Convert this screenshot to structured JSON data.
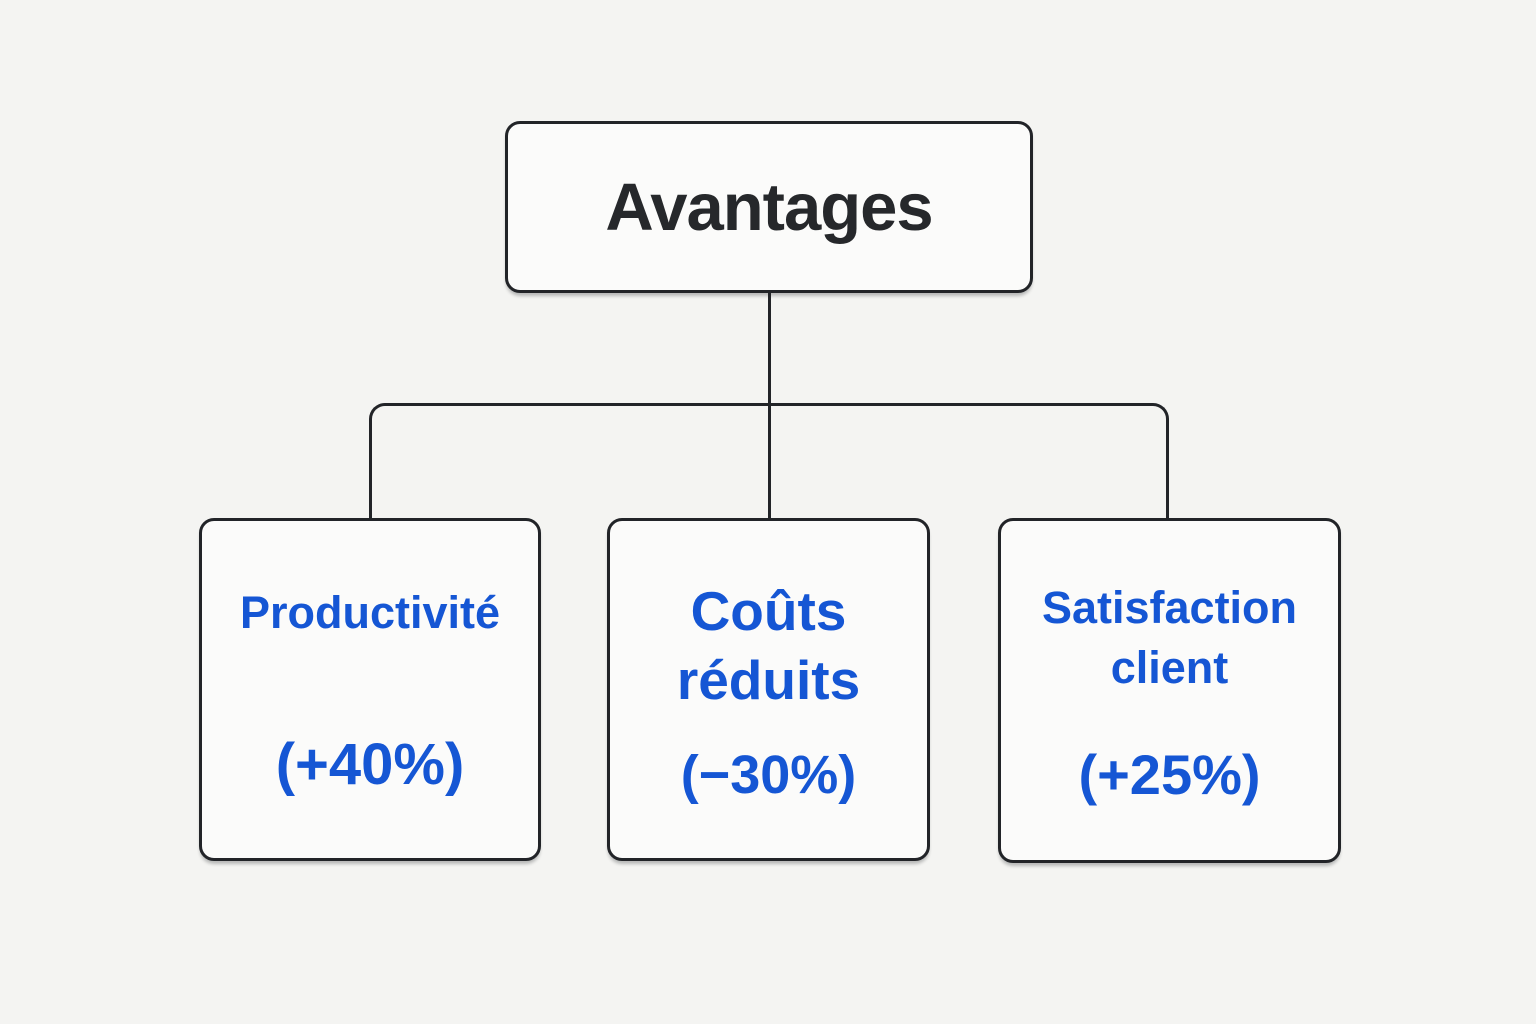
{
  "diagram": {
    "type": "org-chart",
    "root": {
      "label": "Avantages"
    },
    "children": [
      {
        "label": "Productivité",
        "value": "(+40%)"
      },
      {
        "label": "Coûts réduits",
        "value": "(−30%)"
      },
      {
        "label": "Satisfaction client",
        "value": "(+25%)"
      }
    ],
    "colors": {
      "background": "#f4f4f2",
      "box_fill": "#fbfbfa",
      "border": "#222428",
      "root_text": "#26282b",
      "child_text": "#1556d4"
    }
  }
}
